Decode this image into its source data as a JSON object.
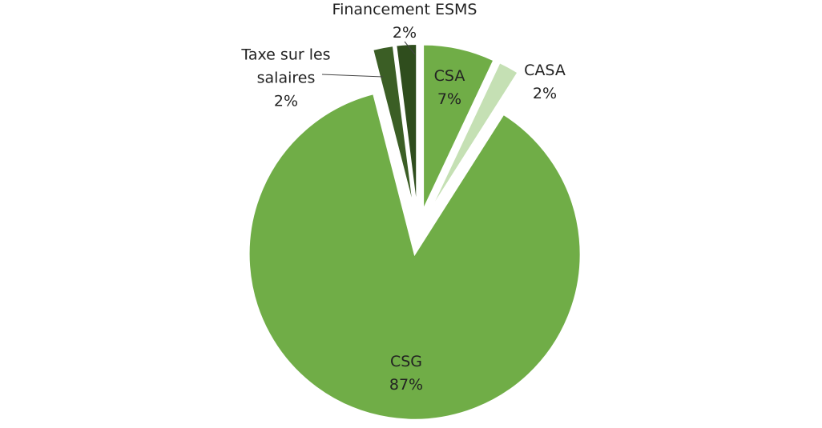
{
  "chart_data": {
    "type": "pie",
    "categories": [
      "CSA",
      "CASA",
      "CSG",
      "Taxe sur les salaires",
      "Financement ESMS"
    ],
    "values": [
      7,
      2,
      87,
      2,
      2
    ],
    "value_labels": [
      "7%",
      "2%",
      "87%",
      "2%",
      "2%"
    ],
    "colors": [
      "#70ad47",
      "#c5e0b4",
      "#70ad47",
      "#3b5e25",
      "#2f4d1d"
    ]
  }
}
